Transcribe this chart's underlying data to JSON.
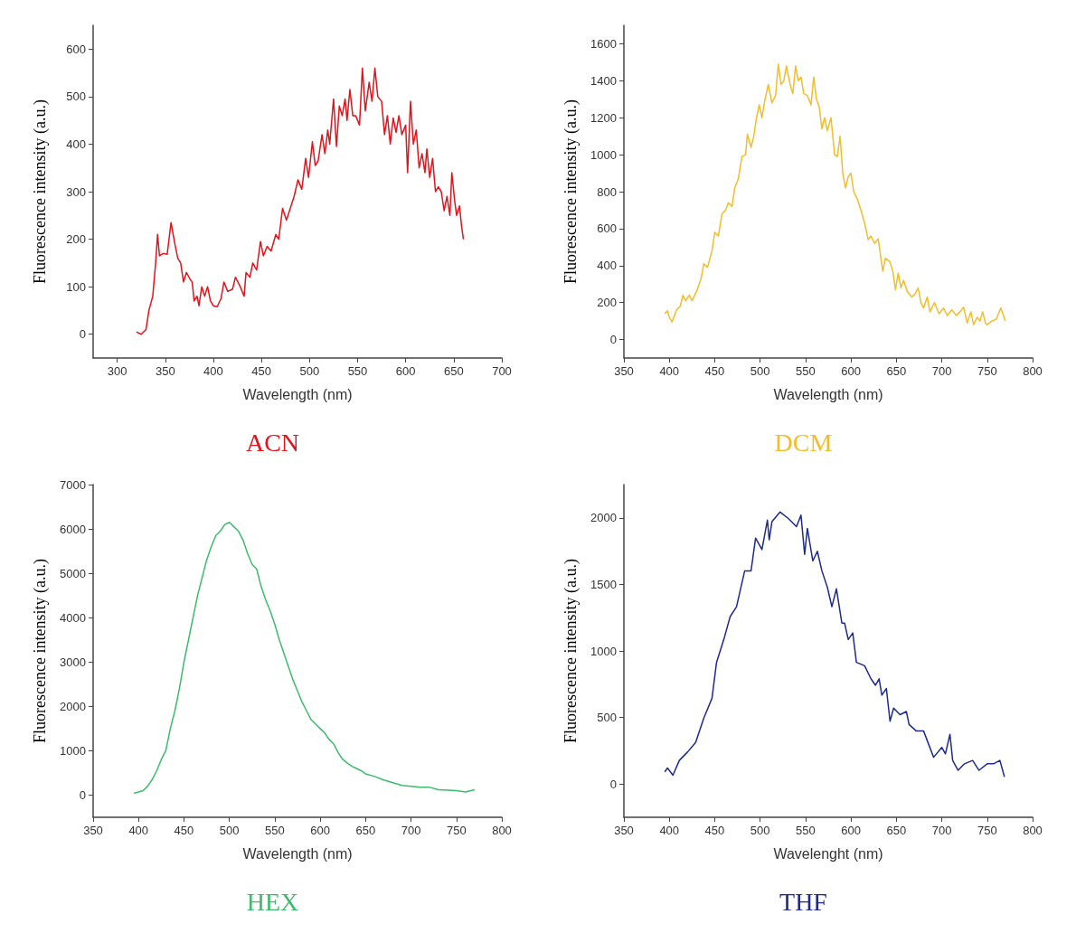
{
  "chart_data": [
    {
      "type": "line",
      "title": "ACN",
      "xlabel": "Wavelength (nm)",
      "ylabel": "Fluorescence intensity (a.u.)",
      "xlim": [
        275,
        700
      ],
      "xticks": [
        300,
        350,
        400,
        450,
        500,
        550,
        600,
        650,
        700
      ],
      "ylim": [
        -50,
        650
      ],
      "yticks": [
        0,
        100,
        200,
        300,
        400,
        500,
        600
      ],
      "series": [
        {
          "color": "#e0141c",
          "x": [
            320,
            325,
            330,
            333,
            337,
            340,
            342,
            344,
            348,
            352,
            356,
            360,
            363,
            366,
            369,
            372,
            376,
            378,
            380,
            383,
            385,
            388,
            391,
            394,
            397,
            400,
            404,
            408,
            411,
            415,
            420,
            423,
            428,
            432,
            434,
            438,
            441,
            445,
            449,
            452,
            456,
            460,
            465,
            468,
            472,
            476,
            480,
            484,
            488,
            492,
            496,
            499,
            503,
            506,
            509,
            513,
            516,
            519,
            521,
            525,
            528,
            531,
            534,
            537,
            539,
            542,
            545,
            548,
            552,
            555,
            558,
            562,
            565,
            568,
            571,
            575,
            578,
            581,
            584,
            587,
            590,
            593,
            596,
            600,
            602,
            605,
            608,
            611,
            614,
            617,
            620,
            622,
            625,
            628,
            631,
            634,
            637,
            640,
            643,
            646,
            648,
            651,
            653,
            656,
            658,
            660
          ],
          "values": [
            5,
            0,
            10,
            50,
            80,
            150,
            210,
            165,
            170,
            168,
            235,
            190,
            160,
            150,
            110,
            130,
            115,
            110,
            70,
            80,
            60,
            100,
            80,
            100,
            70,
            60,
            58,
            75,
            110,
            90,
            95,
            120,
            100,
            80,
            130,
            120,
            150,
            135,
            195,
            165,
            185,
            175,
            210,
            200,
            265,
            240,
            265,
            290,
            325,
            305,
            370,
            330,
            405,
            355,
            365,
            420,
            380,
            430,
            400,
            495,
            395,
            480,
            460,
            495,
            450,
            515,
            460,
            460,
            440,
            560,
            470,
            530,
            490,
            560,
            500,
            490,
            420,
            460,
            400,
            455,
            425,
            460,
            420,
            440,
            340,
            490,
            400,
            430,
            350,
            380,
            340,
            390,
            330,
            370,
            300,
            310,
            300,
            260,
            290,
            250,
            340,
            280,
            250,
            270,
            230,
            200
          ]
        }
      ]
    },
    {
      "type": "line",
      "title": "DCM",
      "xlabel": "Wavelength (nm)",
      "ylabel": "Fluorescence intensity (a.u.)",
      "xlim": [
        350,
        800
      ],
      "xticks": [
        350,
        400,
        450,
        500,
        550,
        600,
        650,
        700,
        750,
        800
      ],
      "ylim": [
        -100,
        1700
      ],
      "yticks": [
        0,
        200,
        400,
        600,
        800,
        1000,
        1200,
        1400,
        1600
      ],
      "series": [
        {
          "color": "#f2bd2a",
          "x": [
            395,
            398,
            400,
            403,
            408,
            412,
            415,
            418,
            422,
            425,
            430,
            435,
            438,
            442,
            447,
            450,
            454,
            458,
            462,
            465,
            469,
            472,
            476,
            480,
            484,
            486,
            490,
            493,
            496,
            499,
            502,
            505,
            509,
            513,
            517,
            520,
            523,
            526,
            529,
            533,
            536,
            539,
            542,
            545,
            548,
            552,
            556,
            559,
            562,
            565,
            568,
            571,
            574,
            578,
            582,
            585,
            588,
            591,
            594,
            597,
            600,
            603,
            607,
            611,
            615,
            619,
            622,
            626,
            630,
            633,
            635,
            638,
            643,
            646,
            649,
            652,
            655,
            658,
            662,
            667,
            671,
            674,
            677,
            680,
            684,
            687,
            692,
            697,
            702,
            706,
            711,
            716,
            720,
            724,
            728,
            732,
            735,
            739,
            742,
            745,
            748,
            750,
            755,
            760,
            765,
            770
          ],
          "values": [
            140,
            155,
            120,
            95,
            160,
            180,
            240,
            210,
            240,
            210,
            260,
            330,
            410,
            390,
            480,
            580,
            560,
            680,
            700,
            740,
            720,
            820,
            870,
            990,
            1000,
            1110,
            1040,
            1100,
            1200,
            1270,
            1200,
            1290,
            1380,
            1280,
            1320,
            1490,
            1380,
            1400,
            1480,
            1380,
            1330,
            1480,
            1400,
            1420,
            1330,
            1320,
            1270,
            1420,
            1300,
            1260,
            1140,
            1200,
            1130,
            1200,
            1000,
            990,
            1100,
            900,
            820,
            880,
            900,
            800,
            760,
            700,
            630,
            540,
            560,
            520,
            545,
            440,
            370,
            440,
            420,
            370,
            270,
            360,
            280,
            320,
            260,
            230,
            250,
            280,
            200,
            170,
            230,
            150,
            200,
            140,
            170,
            130,
            160,
            130,
            150,
            175,
            90,
            150,
            80,
            120,
            100,
            150,
            90,
            80,
            100,
            110,
            170,
            100
          ]
        }
      ]
    },
    {
      "type": "line",
      "title": "HEX",
      "xlabel": "Wavelength (nm)",
      "ylabel": "Fluorescence intensity (a.u.)",
      "xlim": [
        350,
        800
      ],
      "xticks": [
        350,
        400,
        450,
        500,
        550,
        600,
        650,
        700,
        750,
        800
      ],
      "ylim": [
        -500,
        7000
      ],
      "yticks": [
        0,
        1000,
        2000,
        3000,
        4000,
        5000,
        6000,
        7000
      ],
      "series": [
        {
          "color": "#3dbb6c",
          "x": [
            395,
            400,
            405,
            410,
            415,
            420,
            425,
            430,
            435,
            440,
            445,
            450,
            455,
            460,
            465,
            470,
            475,
            480,
            485,
            490,
            495,
            500,
            505,
            510,
            515,
            520,
            525,
            530,
            535,
            540,
            545,
            550,
            555,
            560,
            565,
            570,
            575,
            580,
            585,
            590,
            595,
            600,
            605,
            610,
            615,
            620,
            625,
            630,
            635,
            640,
            645,
            650,
            660,
            670,
            680,
            690,
            700,
            710,
            720,
            730,
            740,
            750,
            760,
            770
          ],
          "values": [
            40,
            70,
            100,
            200,
            350,
            550,
            800,
            1000,
            1500,
            1900,
            2400,
            3000,
            3500,
            4000,
            4500,
            4900,
            5300,
            5600,
            5850,
            5950,
            6100,
            6150,
            6050,
            5950,
            5750,
            5450,
            5200,
            5100,
            4700,
            4400,
            4150,
            3850,
            3500,
            3200,
            2900,
            2600,
            2350,
            2100,
            1900,
            1700,
            1600,
            1500,
            1400,
            1250,
            1150,
            950,
            800,
            720,
            650,
            600,
            550,
            480,
            420,
            340,
            280,
            220,
            200,
            180,
            180,
            120,
            110,
            100,
            70,
            120
          ]
        }
      ]
    },
    {
      "type": "line",
      "title": "THF",
      "xlabel": "Wavelenght (nm)",
      "ylabel": "Fluorescence intensity (a.u.)",
      "xlim": [
        350,
        800
      ],
      "xticks": [
        350,
        400,
        450,
        500,
        550,
        600,
        650,
        700,
        750,
        800
      ],
      "ylim": [
        -250,
        2250
      ],
      "yticks": [
        0,
        500,
        1000,
        1500,
        2000
      ],
      "series": [
        {
          "color": "#1e2a8c",
          "x": [
            395,
            398,
            404,
            411,
            420,
            429,
            438,
            447,
            452,
            460,
            467,
            474,
            483,
            490,
            495,
            502,
            508,
            510,
            513,
            522,
            531,
            540,
            545,
            549,
            552,
            558,
            563,
            568,
            574,
            579,
            584,
            590,
            593,
            597,
            602,
            606,
            615,
            622,
            627,
            631,
            634,
            639,
            643,
            647,
            654,
            661,
            664,
            672,
            680,
            691,
            700,
            704,
            709,
            712,
            718,
            725,
            734,
            741,
            750,
            757,
            764,
            769
          ],
          "values": [
            91,
            120,
            66,
            177,
            240,
            312,
            496,
            644,
            914,
            1086,
            1258,
            1332,
            1602,
            1602,
            1848,
            1762,
            1983,
            1835,
            1971,
            2044,
            1995,
            1934,
            2020,
            1725,
            1921,
            1676,
            1749,
            1602,
            1479,
            1332,
            1467,
            1209,
            1209,
            1086,
            1135,
            914,
            889,
            791,
            742,
            791,
            668,
            717,
            472,
            570,
            521,
            545,
            447,
            398,
            398,
            201,
            275,
            226,
            373,
            177,
            103,
            152,
            177,
            103,
            152,
            152,
            177,
            54
          ]
        }
      ]
    }
  ]
}
